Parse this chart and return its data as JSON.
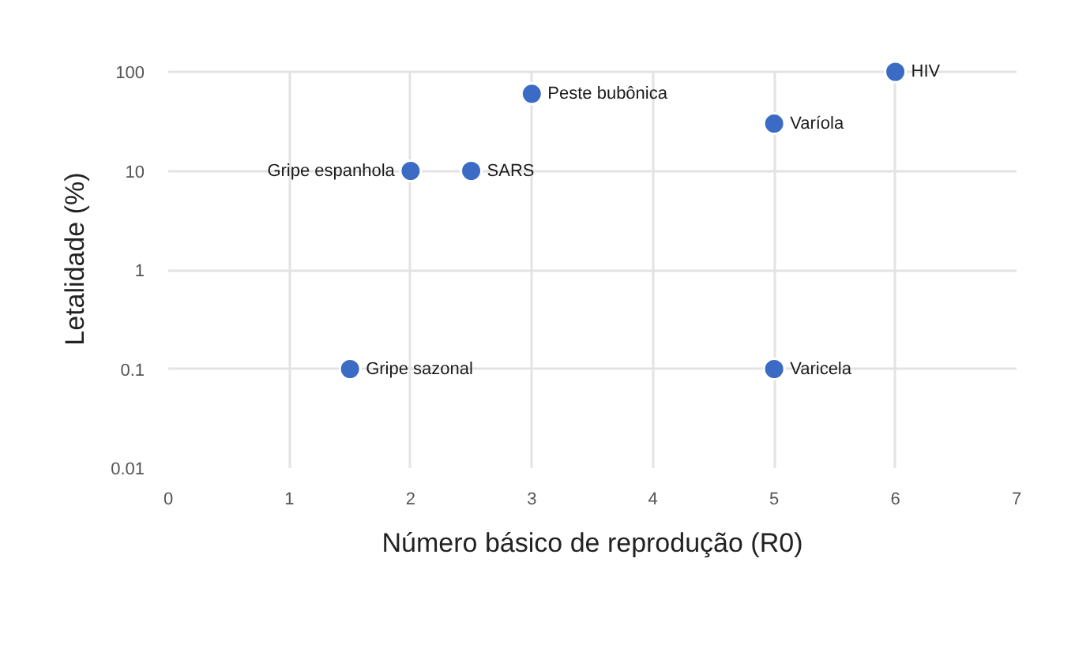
{
  "chart_data": {
    "type": "scatter",
    "xlabel": "Número básico de reprodução (R0)",
    "ylabel": "Letalidade (%)",
    "x": [
      1.5,
      2,
      2.5,
      3,
      5,
      5,
      6
    ],
    "series": [
      {
        "color": "#3b6bc4",
        "values": [
          0.1,
          10,
          10,
          60,
          30,
          0.1,
          100
        ]
      }
    ],
    "annotations": [
      {
        "text": "Gripe sazonal",
        "x": 1.5,
        "y": 0.1
      },
      {
        "text": "Gripe espanhola",
        "x": 2,
        "y": 10
      },
      {
        "text": "SARS",
        "x": 2.5,
        "y": 10
      },
      {
        "text": "Peste bubônica",
        "x": 3,
        "y": 60
      },
      {
        "text": "Varíola",
        "x": 5,
        "y": 30
      },
      {
        "text": "Varicela",
        "x": 5,
        "y": 0.1
      },
      {
        "text": "HIV",
        "x": 6,
        "y": 100
      }
    ],
    "xlim": [
      0,
      7
    ],
    "xticks": [
      0,
      1,
      2,
      3,
      4,
      5,
      6,
      7
    ],
    "ylim": [
      0.01,
      100
    ],
    "yticks": [
      0.01,
      0.1,
      1,
      10,
      100
    ],
    "log": "y",
    "grid": true,
    "marker": "circle"
  }
}
